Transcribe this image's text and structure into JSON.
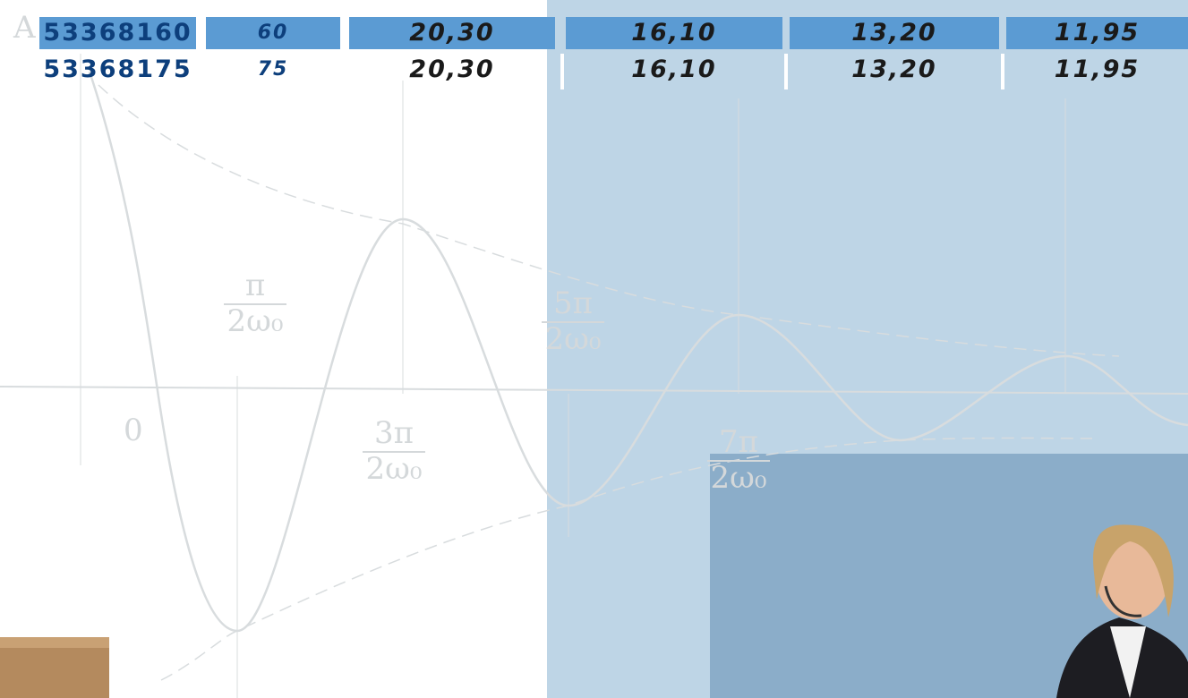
{
  "table": {
    "rows": [
      [
        "53368160",
        "60",
        "20,30",
        "16,10",
        "13,20",
        "11,95"
      ],
      [
        "53368175",
        "75",
        "20,30",
        "16,10",
        "13,20",
        "11,95"
      ]
    ]
  },
  "figure": {
    "axis_labels": [
      "A",
      "0"
    ],
    "fractions": [
      {
        "num": "π",
        "den": "2ω₀"
      },
      {
        "num": "3π",
        "den": "2ω₀"
      },
      {
        "num": "5π",
        "den": "2ω₀"
      },
      {
        "num": "7π",
        "den": "2ω₀"
      }
    ]
  }
}
